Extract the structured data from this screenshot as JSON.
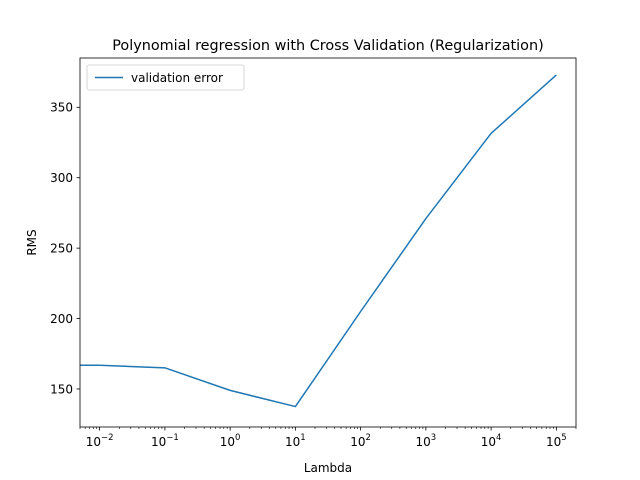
{
  "chart_data": {
    "type": "line",
    "title": "Polynomial regression with Cross Validation (Regularization)",
    "xlabel": "Lambda",
    "ylabel": "RMS",
    "xscale": "log",
    "xlim": [
      0.005,
      200000
    ],
    "ylim": [
      123,
      385
    ],
    "x_ticks": [
      {
        "value": 0.01,
        "base": "10",
        "exp": "−2"
      },
      {
        "value": 0.1,
        "base": "10",
        "exp": "−1"
      },
      {
        "value": 1,
        "base": "10",
        "exp": "0"
      },
      {
        "value": 10,
        "base": "10",
        "exp": "1"
      },
      {
        "value": 100,
        "base": "10",
        "exp": "2"
      },
      {
        "value": 1000,
        "base": "10",
        "exp": "3"
      },
      {
        "value": 10000,
        "base": "10",
        "exp": "4"
      },
      {
        "value": 100000,
        "base": "10",
        "exp": "5"
      }
    ],
    "y_ticks": [
      150,
      200,
      250,
      300,
      350
    ],
    "grid": false,
    "legend": {
      "position": "top-left",
      "entries": [
        "validation error"
      ]
    },
    "series": [
      {
        "name": "validation error",
        "color": "#1f77b4",
        "x": [
          0.001,
          0.01,
          0.1,
          1,
          10,
          100,
          1000,
          10000,
          100000
        ],
        "y": [
          167,
          166.8,
          165,
          149,
          137.5,
          205,
          271,
          331.5,
          373
        ]
      }
    ]
  }
}
